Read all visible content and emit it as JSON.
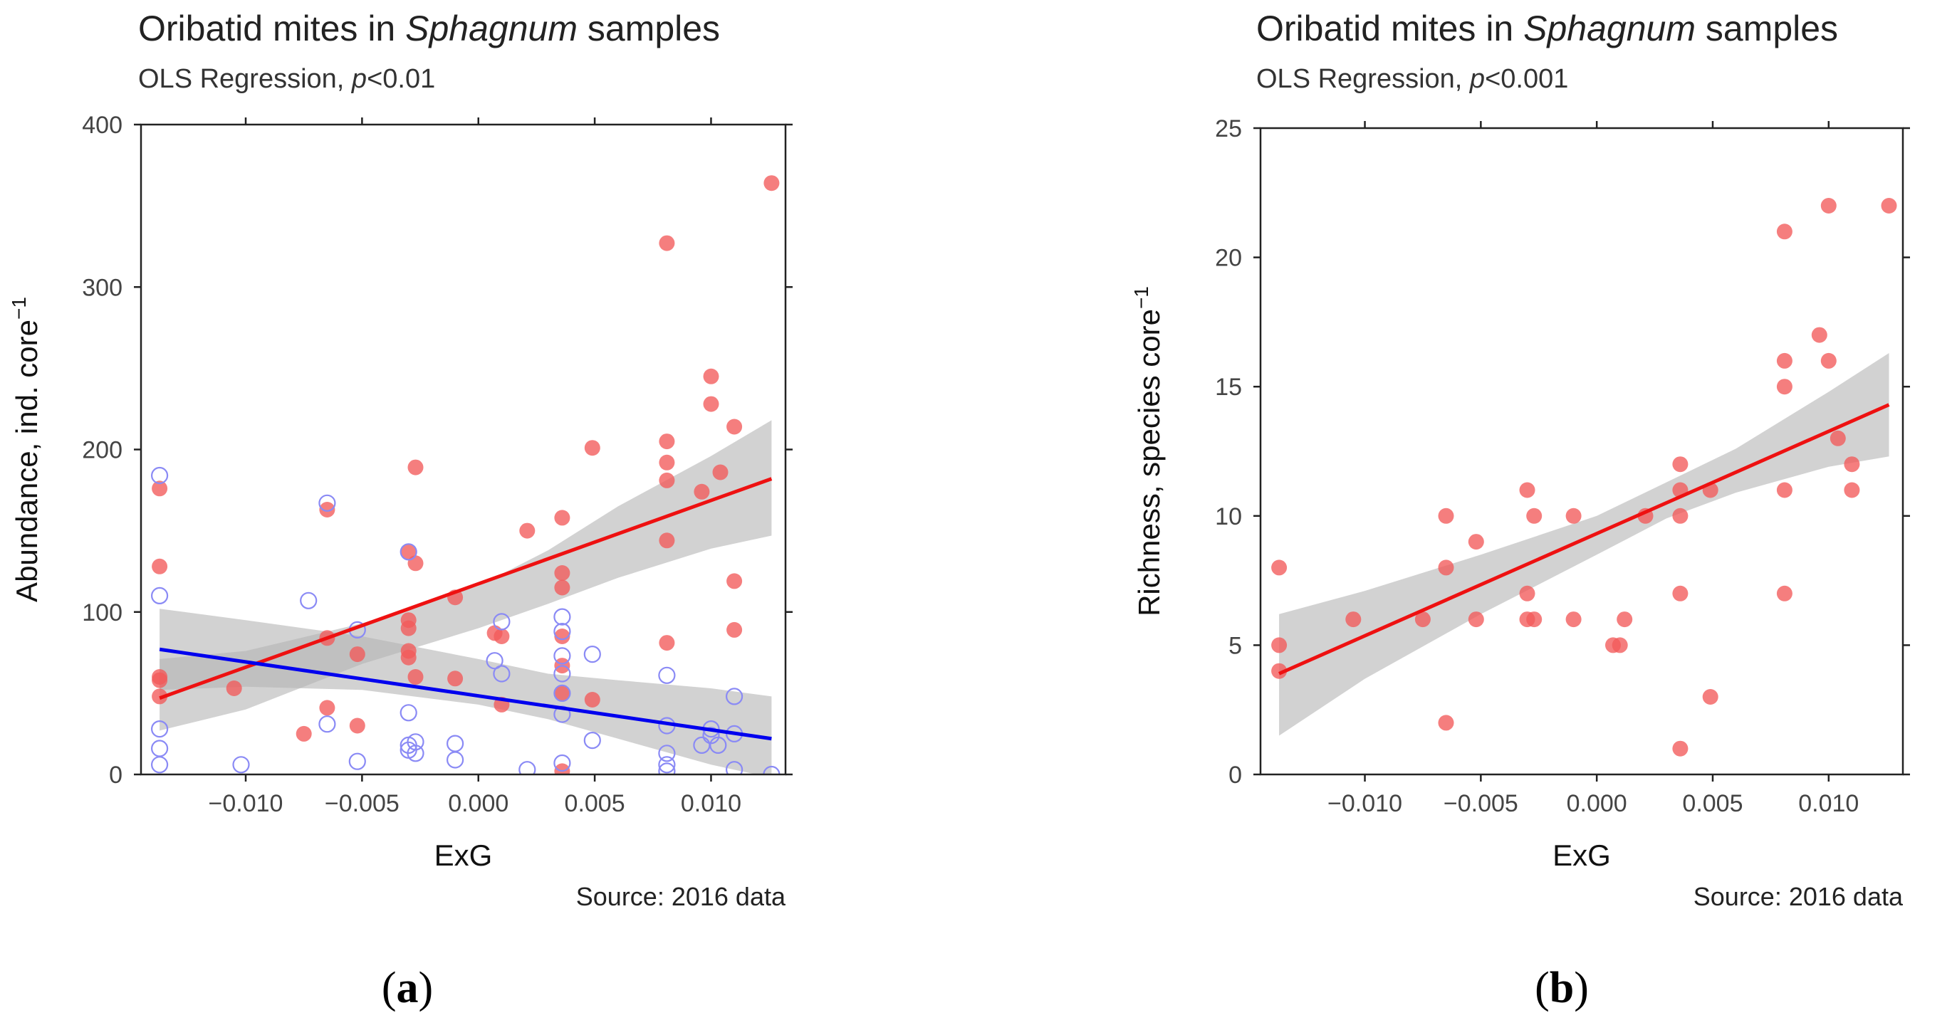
{
  "colors": {
    "red": "#f25a5a",
    "red_line": "#ee1111",
    "blue": "#0000ee",
    "blue_open": "#8a8af5",
    "band": "#b4b4b4"
  },
  "chart_data": [
    {
      "type": "scatter",
      "panel_label": "a",
      "title_prefix": "Oribatid mites in ",
      "title_italic": "Sphagnum",
      "title_suffix": " samples",
      "subtitle_prefix": "OLS Regression, ",
      "subtitle_italic": "p",
      "subtitle_suffix": "<0.01",
      "xlabel": "ExG",
      "ylabel": "Abundance, ind. core",
      "ylabel_superscript": "−1",
      "source": "Source: 2016 data",
      "xlim": [
        -0.0145,
        0.0132
      ],
      "ylim": [
        0,
        400
      ],
      "xticks": [
        -0.01,
        -0.005,
        0.0,
        0.005,
        0.01
      ],
      "xtick_labels": [
        "−0.010",
        "−0.005",
        "0.000",
        "0.005",
        "0.010"
      ],
      "yticks": [
        0,
        100,
        200,
        300,
        400
      ],
      "ytick_labels": [
        "0",
        "100",
        "200",
        "300",
        "400"
      ],
      "series": [
        {
          "name": "Abundance (filled)",
          "marker": "filled",
          "color": "#f25a5a",
          "points": [
            [
              -0.0137,
              176
            ],
            [
              -0.0137,
              128
            ],
            [
              -0.0137,
              60
            ],
            [
              -0.0137,
              58
            ],
            [
              -0.0137,
              48
            ],
            [
              -0.0105,
              53
            ],
            [
              -0.0075,
              25
            ],
            [
              -0.0065,
              163
            ],
            [
              -0.0065,
              84
            ],
            [
              -0.0065,
              41
            ],
            [
              -0.0052,
              74
            ],
            [
              -0.0052,
              30
            ],
            [
              -0.003,
              137
            ],
            [
              -0.003,
              95
            ],
            [
              -0.003,
              90
            ],
            [
              -0.003,
              76
            ],
            [
              -0.003,
              72
            ],
            [
              -0.0027,
              189
            ],
            [
              -0.0027,
              130
            ],
            [
              -0.0027,
              60
            ],
            [
              -0.001,
              59
            ],
            [
              -0.001,
              109
            ],
            [
              0.0007,
              87
            ],
            [
              0.001,
              85
            ],
            [
              0.001,
              43
            ],
            [
              0.0021,
              150
            ],
            [
              0.0036,
              158
            ],
            [
              0.0036,
              124
            ],
            [
              0.0036,
              115
            ],
            [
              0.0036,
              85
            ],
            [
              0.0036,
              67
            ],
            [
              0.0036,
              50
            ],
            [
              0.0036,
              2
            ],
            [
              0.0049,
              201
            ],
            [
              0.0049,
              46
            ],
            [
              0.0081,
              327
            ],
            [
              0.0081,
              205
            ],
            [
              0.0081,
              192
            ],
            [
              0.0081,
              181
            ],
            [
              0.0081,
              144
            ],
            [
              0.0081,
              81
            ],
            [
              0.0096,
              174
            ],
            [
              0.01,
              245
            ],
            [
              0.01,
              228
            ],
            [
              0.0104,
              186
            ],
            [
              0.011,
              214
            ],
            [
              0.011,
              119
            ],
            [
              0.011,
              89
            ],
            [
              0.0126,
              364
            ]
          ]
        },
        {
          "name": "Abundance (open)",
          "marker": "open",
          "color": "#8a8af5",
          "points": [
            [
              -0.0137,
              184
            ],
            [
              -0.0137,
              110
            ],
            [
              -0.0137,
              28
            ],
            [
              -0.0137,
              16
            ],
            [
              -0.0137,
              6
            ],
            [
              -0.0102,
              6
            ],
            [
              -0.0073,
              107
            ],
            [
              -0.0065,
              167
            ],
            [
              -0.0065,
              31
            ],
            [
              -0.0052,
              89
            ],
            [
              -0.0052,
              8
            ],
            [
              -0.003,
              137
            ],
            [
              -0.003,
              38
            ],
            [
              -0.003,
              18
            ],
            [
              -0.003,
              15
            ],
            [
              -0.0027,
              20
            ],
            [
              -0.0027,
              13
            ],
            [
              -0.001,
              19
            ],
            [
              -0.001,
              9
            ],
            [
              0.0007,
              70
            ],
            [
              0.001,
              94
            ],
            [
              0.001,
              62
            ],
            [
              0.0021,
              3
            ],
            [
              0.0036,
              97
            ],
            [
              0.0036,
              88
            ],
            [
              0.0036,
              73
            ],
            [
              0.0036,
              62
            ],
            [
              0.0036,
              50
            ],
            [
              0.0036,
              37
            ],
            [
              0.0036,
              7
            ],
            [
              0.0049,
              74
            ],
            [
              0.0049,
              21
            ],
            [
              0.0081,
              61
            ],
            [
              0.0081,
              30
            ],
            [
              0.0081,
              13
            ],
            [
              0.0081,
              6
            ],
            [
              0.0081,
              2
            ],
            [
              0.0096,
              18
            ],
            [
              0.01,
              28
            ],
            [
              0.01,
              24
            ],
            [
              0.0103,
              18
            ],
            [
              0.011,
              48
            ],
            [
              0.011,
              25
            ],
            [
              0.011,
              3
            ],
            [
              0.0126,
              0
            ]
          ]
        }
      ],
      "fits": [
        {
          "name": "Filled fit",
          "color": "#ee1111",
          "x": [
            -0.0137,
            0.0126
          ],
          "y": [
            47,
            182
          ],
          "band_x": [
            -0.0137,
            -0.01,
            -0.005,
            0.0,
            0.003,
            0.006,
            0.01,
            0.0126
          ],
          "band_lower": [
            27,
            40,
            68,
            90,
            105,
            121,
            139,
            147
          ],
          "band_upper": [
            71,
            76,
            93,
            116,
            138,
            165,
            196,
            218
          ]
        },
        {
          "name": "Open fit",
          "color": "#0000ee",
          "x": [
            -0.0137,
            0.0126
          ],
          "y": [
            77,
            22
          ],
          "band_x": [
            -0.0137,
            -0.01,
            -0.005,
            0.0,
            0.003,
            0.006,
            0.01,
            0.0126
          ],
          "band_lower": [
            52,
            54,
            52,
            43,
            34,
            22,
            6,
            -2
          ],
          "band_upper": [
            102,
            95,
            85,
            71,
            62,
            58,
            53,
            48
          ]
        }
      ]
    },
    {
      "type": "scatter",
      "panel_label": "b",
      "title_prefix": "Oribatid mites in ",
      "title_italic": "Sphagnum",
      "title_suffix": " samples",
      "subtitle_prefix": "OLS Regression, ",
      "subtitle_italic": "p",
      "subtitle_suffix": "<0.001",
      "xlabel": "ExG",
      "ylabel": "Richness, species core",
      "ylabel_superscript": "−1",
      "source": "Source: 2016 data",
      "xlim": [
        -0.0145,
        0.0132
      ],
      "ylim": [
        0,
        25
      ],
      "xticks": [
        -0.01,
        -0.005,
        0.0,
        0.005,
        0.01
      ],
      "xtick_labels": [
        "−0.010",
        "−0.005",
        "0.000",
        "0.005",
        "0.010"
      ],
      "yticks": [
        0,
        5,
        10,
        15,
        20,
        25
      ],
      "ytick_labels": [
        "0",
        "5",
        "10",
        "15",
        "20",
        "25"
      ],
      "series": [
        {
          "name": "Richness",
          "marker": "filled",
          "color": "#f25a5a",
          "points": [
            [
              -0.0137,
              8
            ],
            [
              -0.0137,
              5
            ],
            [
              -0.0137,
              4
            ],
            [
              -0.0105,
              6
            ],
            [
              -0.0075,
              6
            ],
            [
              -0.0065,
              10
            ],
            [
              -0.0065,
              8
            ],
            [
              -0.0065,
              2
            ],
            [
              -0.0052,
              9
            ],
            [
              -0.0052,
              6
            ],
            [
              -0.003,
              11
            ],
            [
              -0.003,
              7
            ],
            [
              -0.003,
              6
            ],
            [
              -0.0027,
              10
            ],
            [
              -0.0027,
              6
            ],
            [
              -0.001,
              10
            ],
            [
              -0.001,
              6
            ],
            [
              0.0007,
              5
            ],
            [
              0.001,
              5
            ],
            [
              0.0012,
              6
            ],
            [
              0.0021,
              10
            ],
            [
              0.0036,
              12
            ],
            [
              0.0036,
              11
            ],
            [
              0.0036,
              10
            ],
            [
              0.0036,
              7
            ],
            [
              0.0036,
              1
            ],
            [
              0.0049,
              11
            ],
            [
              0.0049,
              3
            ],
            [
              0.0081,
              21
            ],
            [
              0.0081,
              16
            ],
            [
              0.0081,
              15
            ],
            [
              0.0081,
              11
            ],
            [
              0.0081,
              7
            ],
            [
              0.0096,
              17
            ],
            [
              0.01,
              22
            ],
            [
              0.01,
              16
            ],
            [
              0.0104,
              13
            ],
            [
              0.011,
              12
            ],
            [
              0.011,
              11
            ],
            [
              0.0126,
              22
            ]
          ]
        }
      ],
      "fits": [
        {
          "name": "Richness fit",
          "color": "#ee1111",
          "x": [
            -0.0137,
            0.0126
          ],
          "y": [
            3.9,
            14.3
          ],
          "band_x": [
            -0.0137,
            -0.01,
            -0.005,
            0.0,
            0.003,
            0.006,
            0.01,
            0.0126
          ],
          "band_lower": [
            1.5,
            3.7,
            6.2,
            8.5,
            9.9,
            10.9,
            11.9,
            12.3
          ],
          "band_upper": [
            6.2,
            7.1,
            8.5,
            10.0,
            11.3,
            12.6,
            14.8,
            16.3
          ]
        }
      ]
    }
  ]
}
